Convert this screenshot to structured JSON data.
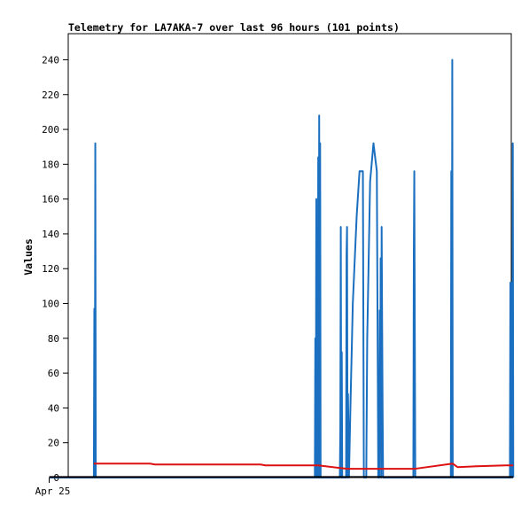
{
  "chart_data": {
    "type": "line",
    "title": "Telemetry for LA7AKA-7 over last 96 hours (101 points)",
    "xlabel": "",
    "ylabel": "Values",
    "ylim": [
      0,
      255
    ],
    "y_ticks": [
      0,
      20,
      40,
      60,
      80,
      100,
      120,
      140,
      160,
      180,
      200,
      220,
      240
    ],
    "x_range_hours": [
      0,
      96
    ],
    "x_tick_labels": [
      {
        "x": 0,
        "label": "Apr 25"
      }
    ],
    "grid": false,
    "series": [
      {
        "color": "#1a6fc0",
        "points": [
          [
            0,
            0
          ],
          [
            9.3,
            0
          ],
          [
            9.4,
            97
          ],
          [
            9.5,
            0
          ],
          [
            9.6,
            192
          ],
          [
            9.7,
            0
          ],
          [
            55.3,
            0
          ],
          [
            55.4,
            80
          ],
          [
            55.5,
            0
          ],
          [
            55.6,
            160
          ],
          [
            55.7,
            0
          ],
          [
            55.8,
            40
          ],
          [
            55.9,
            0
          ],
          [
            56.0,
            184
          ],
          [
            56.1,
            0
          ],
          [
            56.2,
            208
          ],
          [
            56.3,
            0
          ],
          [
            56.4,
            192
          ],
          [
            56.5,
            0
          ],
          [
            60.5,
            0
          ],
          [
            60.6,
            28
          ],
          [
            60.7,
            144
          ],
          [
            60.8,
            0
          ],
          [
            60.9,
            72
          ],
          [
            61.0,
            0
          ],
          [
            61.8,
            0
          ],
          [
            61.9,
            128
          ],
          [
            62.0,
            144
          ],
          [
            62.1,
            0
          ],
          [
            62.2,
            48
          ],
          [
            62.4,
            0
          ],
          [
            62.7,
            40
          ],
          [
            63.2,
            100
          ],
          [
            64.0,
            150
          ],
          [
            64.6,
            176
          ],
          [
            65.3,
            176
          ],
          [
            65.5,
            0
          ],
          [
            66.0,
            0
          ],
          [
            66.2,
            80
          ],
          [
            66.8,
            170
          ],
          [
            67.5,
            192
          ],
          [
            68.2,
            176
          ],
          [
            68.5,
            0
          ],
          [
            68.7,
            0
          ],
          [
            68.8,
            96
          ],
          [
            68.9,
            20
          ],
          [
            69.0,
            126
          ],
          [
            69.1,
            0
          ],
          [
            69.2,
            144
          ],
          [
            69.3,
            90
          ],
          [
            69.4,
            40
          ],
          [
            69.5,
            0
          ],
          [
            75.8,
            0
          ],
          [
            75.9,
            130
          ],
          [
            76.0,
            176
          ],
          [
            76.1,
            88
          ],
          [
            76.2,
            0
          ],
          [
            83.6,
            0
          ],
          [
            83.7,
            176
          ],
          [
            83.8,
            0
          ],
          [
            83.9,
            240
          ],
          [
            84.0,
            0
          ],
          [
            95.9,
            0
          ],
          [
            96.0,
            112
          ],
          [
            96.1,
            0
          ],
          [
            96.2,
            56
          ],
          [
            96.3,
            112
          ],
          [
            96.4,
            0
          ],
          [
            96.5,
            192
          ],
          [
            96.6,
            0
          ]
        ]
      },
      {
        "color": "#dd1111",
        "points": [
          [
            9.3,
            8
          ],
          [
            21,
            8
          ],
          [
            22,
            7.5
          ],
          [
            44,
            7.5
          ],
          [
            45,
            7
          ],
          [
            56,
            7
          ],
          [
            62,
            5
          ],
          [
            76,
            5
          ],
          [
            84,
            8
          ],
          [
            85,
            6
          ],
          [
            89,
            6.5
          ],
          [
            95,
            7
          ],
          [
            96.6,
            7
          ]
        ]
      },
      {
        "color": "#000000",
        "points": [
          [
            0,
            0.3
          ],
          [
            96.6,
            0.3
          ]
        ]
      }
    ]
  }
}
